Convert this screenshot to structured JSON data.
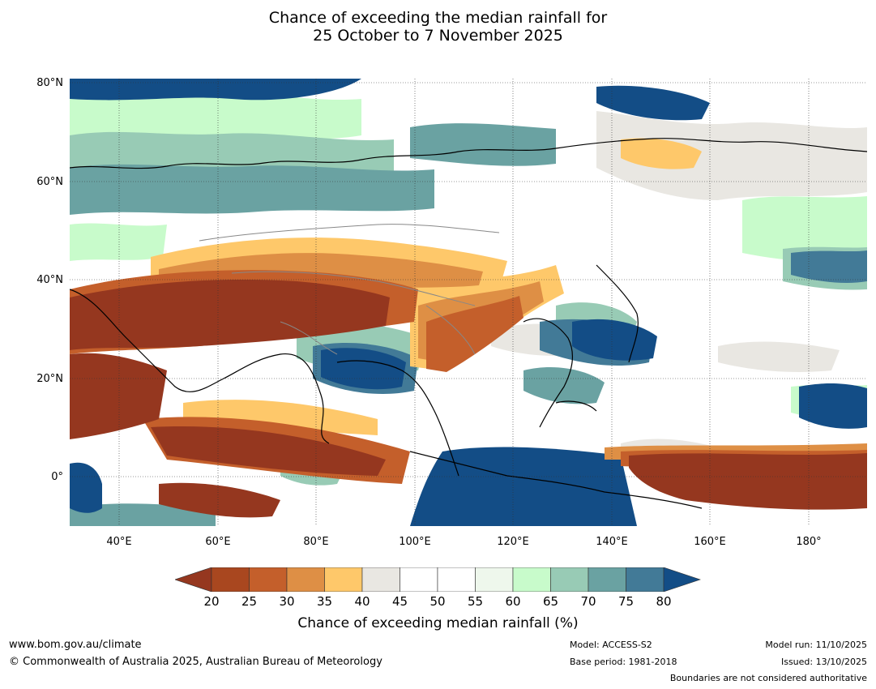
{
  "title": {
    "line1": "Chance of exceeding the median rainfall for",
    "line2": "25 October to 7 November 2025"
  },
  "map": {
    "lat_labels": [
      "80°N",
      "60°N",
      "40°N",
      "20°N",
      "0°"
    ],
    "lon_labels": [
      "40°E",
      "60°E",
      "80°E",
      "100°E",
      "120°E",
      "140°E",
      "160°E",
      "180°"
    ]
  },
  "colorbar": {
    "ticks": [
      "20",
      "25",
      "30",
      "35",
      "40",
      "45",
      "50",
      "55",
      "60",
      "65",
      "70",
      "75",
      "80"
    ],
    "colors": [
      "#95371f",
      "#a9471f",
      "#c45f2b",
      "#de8f45",
      "#fec86a",
      "#e9e7e2",
      "#ffffff",
      "#ffffff",
      "#eef7ec",
      "#c8fbcb",
      "#98cbb5",
      "#6aa2a2",
      "#427a97",
      "#134d86"
    ],
    "label": "Chance of exceeding median rainfall (%)"
  },
  "footer": {
    "website": "www.bom.gov.au/climate",
    "copyright": "© Commonwealth of Australia 2025, Australian Bureau of Meteorology",
    "model": "Model: ACCESS-S2",
    "base_period": "Base period: 1981-2018",
    "model_run": "Model run: 11/10/2025",
    "issued": "Issued: 13/10/2025",
    "disclaimer": "Boundaries are not considered authoritative"
  }
}
